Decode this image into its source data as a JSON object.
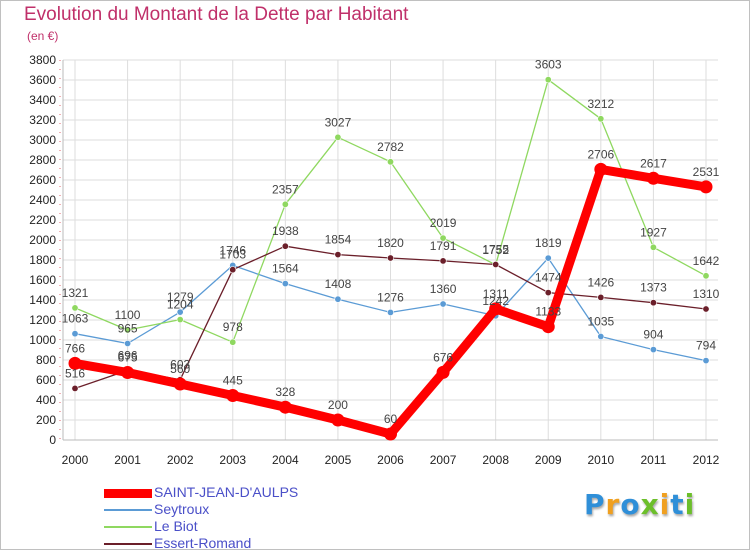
{
  "header": {
    "title": "Evolution du Montant de la Dette par Habitant",
    "subtitle": "(en €)"
  },
  "logo": {
    "text": "Proxiti",
    "letters": [
      {
        "ch": "P",
        "color": "#2f8fd8"
      },
      {
        "ch": "r",
        "color": "#f0a020"
      },
      {
        "ch": "o",
        "color": "#2f8fd8"
      },
      {
        "ch": "x",
        "color": "#6cbf2a"
      },
      {
        "ch": "i",
        "color": "#f0a020"
      },
      {
        "ch": "t",
        "color": "#2f8fd8"
      },
      {
        "ch": "i",
        "color": "#6cbf2a"
      }
    ]
  },
  "chart_data": {
    "type": "line",
    "title": "Evolution du Montant de la Dette par Habitant",
    "subtitle": "(en €)",
    "x": [
      "2000",
      "2001",
      "2002",
      "2003",
      "2004",
      "2005",
      "2006",
      "2007",
      "2008",
      "2009",
      "2010",
      "2011",
      "2012"
    ],
    "ylim": [
      0,
      3800
    ],
    "yticks": [
      0,
      200,
      400,
      600,
      800,
      1000,
      1200,
      1400,
      1600,
      1800,
      2000,
      2200,
      2400,
      2600,
      2800,
      3000,
      3200,
      3400,
      3600,
      3800
    ],
    "grid": true,
    "legend_position": "bottom-left",
    "series": [
      {
        "name": "SAINT-JEAN-D'AULPS",
        "color": "#ff0000",
        "values": [
          766,
          675,
          560,
          445,
          328,
          200,
          60,
          676,
          1311,
          1133,
          2706,
          2617,
          2531
        ],
        "emphasis": true
      },
      {
        "name": "Seytroux",
        "color": "#5b9bd5",
        "values": [
          1063,
          965,
          1279,
          1746,
          1564,
          1408,
          1276,
          1360,
          1242,
          1819,
          1035,
          904,
          794
        ]
      },
      {
        "name": "Le Biot",
        "color": "#8fd860",
        "values": [
          1321,
          1100,
          1204,
          978,
          2357,
          3027,
          2782,
          2019,
          1752,
          3603,
          3212,
          1927,
          1642
        ]
      },
      {
        "name": "Essert-Romand",
        "color": "#6b1f2a",
        "values": [
          516,
          696,
          603,
          1703,
          1938,
          1854,
          1820,
          1791,
          1755,
          1474,
          1426,
          1373,
          1310
        ]
      }
    ]
  }
}
